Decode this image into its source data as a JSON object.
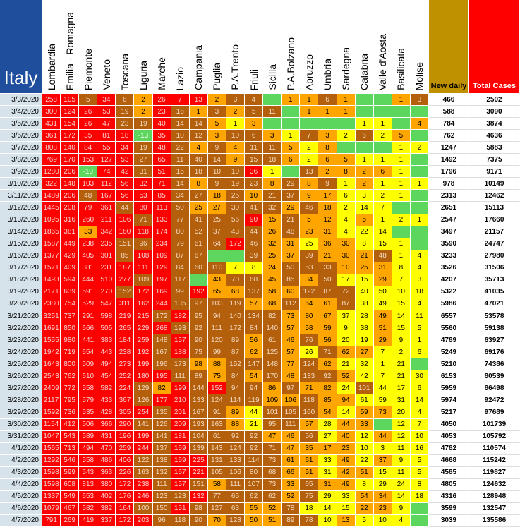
{
  "title": "Italy",
  "columns": [
    "Lombardia",
    "Emilia - Romagna",
    "Piemonte",
    "Veneto",
    "Toscana",
    "Liguria",
    "Marche",
    "Lazio",
    "Campania",
    "Puglia",
    "P.A.Trento",
    "Friuli",
    "Sicilia",
    "P.A.Bolzano",
    "Abruzzo",
    "Umbria",
    "Sardegna",
    "Calabria",
    "Valle d'Aosta",
    "Basilicata",
    "Molise"
  ],
  "new_daily_label": "New daily",
  "total_label": "Total Cases",
  "colors": [
    "#ff0000",
    "#b35f0c",
    "#ffa500",
    "#ffff00",
    "#5cd65c"
  ],
  "rows": [
    {
      "date": "3/3/2020",
      "values": [
        258,
        105,
        5,
        34,
        6,
        2,
        26,
        7,
        13,
        2,
        3,
        4,
        null,
        1,
        1,
        6,
        1,
        null,
        null,
        1,
        3
      ],
      "new_daily": 466,
      "total": 2502
    },
    {
      "date": "3/4/2020",
      "values": [
        300,
        124,
        26,
        53,
        19,
        2,
        23,
        16,
        1,
        3,
        2,
        5,
        11,
        null,
        1,
        1,
        1,
        null,
        null,
        null,
        null
      ],
      "new_daily": 588,
      "total": 3090
    },
    {
      "date": "3/5/2020",
      "values": [
        431,
        154,
        26,
        47,
        23,
        19,
        40,
        14,
        14,
        5,
        1,
        3,
        null,
        null,
        null,
        null,
        null,
        1,
        1,
        null,
        4
      ],
      "new_daily": 784,
      "total": 3874
    },
    {
      "date": "3/6/2020",
      "values": [
        361,
        172,
        35,
        81,
        18,
        -13,
        35,
        10,
        12,
        3,
        10,
        6,
        3,
        1,
        7,
        3,
        2,
        6,
        2,
        5,
        null
      ],
      "new_daily": 762,
      "total": 4636
    },
    {
      "date": "3/7/2020",
      "values": [
        808,
        140,
        84,
        55,
        34,
        19,
        48,
        22,
        4,
        9,
        4,
        11,
        11,
        5,
        2,
        8,
        null,
        null,
        null,
        1,
        2
      ],
      "new_daily": 1247,
      "total": 5883
    },
    {
      "date": "3/8/2020",
      "values": [
        769,
        170,
        153,
        127,
        53,
        27,
        65,
        11,
        40,
        14,
        9,
        15,
        18,
        6,
        2,
        6,
        5,
        1,
        1,
        1,
        null
      ],
      "new_daily": 1492,
      "total": 7375
    },
    {
      "date": "3/9/2020",
      "values": [
        1280,
        206,
        -10,
        74,
        42,
        31,
        51,
        15,
        18,
        10,
        10,
        36,
        1,
        null,
        13,
        2,
        8,
        2,
        6,
        1,
        null
      ],
      "new_daily": 1796,
      "total": 9171
    },
    {
      "date": "3/10/2020",
      "values": [
        322,
        148,
        103,
        112,
        56,
        32,
        71,
        14,
        8,
        9,
        19,
        23,
        8,
        29,
        8,
        9,
        1,
        2,
        1,
        1,
        1
      ],
      "new_daily": 978,
      "total": 10149
    },
    {
      "date": "3/11/2020",
      "values": [
        1489,
        206,
        48,
        167,
        56,
        53,
        85,
        34,
        27,
        18,
        25,
        10,
        21,
        37,
        9,
        17,
        6,
        3,
        2,
        1,
        null
      ],
      "new_daily": 2313,
      "total": 12462
    },
    {
      "date": "3/12/2020",
      "values": [
        1445,
        208,
        79,
        361,
        44,
        80,
        113,
        50,
        25,
        27,
        30,
        41,
        32,
        29,
        46,
        18,
        2,
        14,
        7,
        null,
        null
      ],
      "new_daily": 2651,
      "total": 15113
    },
    {
      "date": "3/13/2020",
      "values": [
        1095,
        316,
        260,
        211,
        106,
        71,
        133,
        77,
        41,
        25,
        56,
        90,
        15,
        21,
        5,
        12,
        4,
        5,
        1,
        2,
        1
      ],
      "new_daily": 2547,
      "total": 17660
    },
    {
      "date": "3/14/2020",
      "values": [
        1865,
        381,
        33,
        342,
        160,
        118,
        174,
        80,
        52,
        37,
        43,
        44,
        26,
        48,
        23,
        31,
        4,
        22,
        14,
        null,
        null
      ],
      "new_daily": 3497,
      "total": 21157
    },
    {
      "date": "3/15/2020",
      "values": [
        1587,
        449,
        238,
        235,
        151,
        96,
        234,
        79,
        61,
        64,
        172,
        46,
        32,
        31,
        25,
        36,
        30,
        8,
        15,
        1,
        null
      ],
      "new_daily": 3590,
      "total": 24747
    },
    {
      "date": "3/16/2020",
      "values": [
        1377,
        429,
        405,
        301,
        85,
        108,
        109,
        87,
        67,
        null,
        null,
        39,
        25,
        37,
        39,
        21,
        30,
        21,
        48,
        1,
        4
      ],
      "new_daily": 3233,
      "total": 27980
    },
    {
      "date": "3/17/2020",
      "values": [
        1571,
        409,
        381,
        231,
        187,
        111,
        129,
        84,
        60,
        110,
        7,
        8,
        24,
        50,
        53,
        33,
        10,
        25,
        31,
        8,
        4
      ],
      "new_daily": 3526,
      "total": 31506
    },
    {
      "date": "3/18/2020",
      "values": [
        1493,
        594,
        444,
        510,
        277,
        109,
        197,
        117,
        null,
        43,
        70,
        68,
        45,
        85,
        34,
        50,
        17,
        15,
        29,
        7,
        3
      ],
      "new_daily": 4207,
      "total": 35713
    },
    {
      "date": "3/19/2020",
      "values": [
        2171,
        639,
        591,
        270,
        152,
        172,
        169,
        99,
        192,
        65,
        68,
        137,
        58,
        60,
        122,
        87,
        72,
        40,
        50,
        10,
        18
      ],
      "new_daily": 5322,
      "total": 41035
    },
    {
      "date": "3/20/2020",
      "values": [
        2380,
        754,
        529,
        547,
        311,
        162,
        244,
        135,
        97,
        103,
        119,
        57,
        68,
        112,
        64,
        61,
        87,
        38,
        49,
        15,
        4
      ],
      "new_daily": 5986,
      "total": 47021
    },
    {
      "date": "3/21/2020",
      "values": [
        3251,
        737,
        291,
        598,
        219,
        215,
        172,
        182,
        95,
        94,
        140,
        134,
        82,
        73,
        80,
        67,
        37,
        28,
        49,
        14,
        11
      ],
      "new_daily": 6557,
      "total": 53578
    },
    {
      "date": "3/22/2020",
      "values": [
        1691,
        850,
        666,
        505,
        265,
        229,
        268,
        193,
        92,
        111,
        172,
        84,
        140,
        57,
        58,
        59,
        9,
        38,
        51,
        15,
        5
      ],
      "new_daily": 5560,
      "total": 59138
    },
    {
      "date": "3/23/2020",
      "values": [
        1555,
        980,
        441,
        383,
        184,
        259,
        148,
        157,
        90,
        120,
        89,
        56,
        61,
        46,
        76,
        56,
        20,
        19,
        29,
        9,
        1
      ],
      "new_daily": 4789,
      "total": 63927
    },
    {
      "date": "3/24/2020",
      "values": [
        1942,
        719,
        654,
        443,
        238,
        192,
        167,
        188,
        75,
        99,
        87,
        62,
        125,
        57,
        26,
        71,
        62,
        27,
        7,
        2,
        6
      ],
      "new_daily": 5249,
      "total": 69176
    },
    {
      "date": "3/25/2020",
      "values": [
        1643,
        800,
        509,
        494,
        273,
        199,
        196,
        173,
        98,
        88,
        152,
        147,
        148,
        77,
        124,
        62,
        21,
        32,
        1,
        21,
        null
      ],
      "new_daily": 5210,
      "total": 74386
    },
    {
      "date": "3/26/2020",
      "values": [
        2543,
        762,
        610,
        454,
        252,
        180,
        195,
        111,
        89,
        75,
        84,
        54,
        170,
        48,
        133,
        92,
        52,
        42,
        7,
        21,
        30
      ],
      "new_daily": 6153,
      "total": 80539
    },
    {
      "date": "3/27/2020",
      "values": [
        2409,
        772,
        558,
        582,
        224,
        129,
        82,
        199,
        144,
        152,
        94,
        94,
        86,
        97,
        71,
        82,
        24,
        101,
        44,
        17,
        6
      ],
      "new_daily": 5959,
      "total": 86498
    },
    {
      "date": "3/28/2020",
      "values": [
        2117,
        795,
        579,
        433,
        367,
        126,
        177,
        210,
        133,
        124,
        114,
        119,
        109,
        106,
        118,
        85,
        94,
        61,
        59,
        31,
        14
      ],
      "new_daily": 5974,
      "total": 92472
    },
    {
      "date": "3/29/2020",
      "values": [
        1592,
        736,
        535,
        428,
        305,
        254,
        135,
        201,
        167,
        91,
        89,
        44,
        101,
        105,
        160,
        54,
        14,
        59,
        73,
        20,
        4
      ],
      "new_daily": 5217,
      "total": 97689
    },
    {
      "date": "3/30/2020",
      "values": [
        1154,
        412,
        506,
        366,
        290,
        141,
        126,
        209,
        193,
        163,
        88,
        21,
        95,
        111,
        57,
        28,
        44,
        33,
        null,
        12,
        7
      ],
      "new_daily": 4050,
      "total": 101739
    },
    {
      "date": "3/31/2020",
      "values": [
        1047,
        543,
        589,
        431,
        196,
        199,
        141,
        181,
        104,
        61,
        92,
        92,
        47,
        46,
        56,
        27,
        40,
        12,
        44,
        12,
        10
      ],
      "new_daily": 4053,
      "total": 105792
    },
    {
      "date": "4/1/2020",
      "values": [
        1565,
        713,
        494,
        470,
        259,
        244,
        137,
        169,
        139,
        143,
        124,
        92,
        71,
        47,
        35,
        17,
        23,
        10,
        3,
        11,
        16
      ],
      "new_daily": 4782,
      "total": 110574
    },
    {
      "date": "4/2/2020",
      "values": [
        1292,
        546,
        558,
        486,
        406,
        122,
        138,
        169,
        225,
        131,
        133,
        114,
        73,
        61,
        61,
        33,
        49,
        22,
        37,
        9,
        5
      ],
      "new_daily": 4668,
      "total": 115242
    },
    {
      "date": "4/3/2020",
      "values": [
        1598,
        599,
        543,
        363,
        226,
        163,
        132,
        167,
        221,
        105,
        106,
        80,
        68,
        66,
        51,
        31,
        42,
        51,
        15,
        11,
        5
      ],
      "new_daily": 4585,
      "total": 119827
    },
    {
      "date": "4/4/2020",
      "values": [
        1598,
        608,
        813,
        380,
        172,
        238,
        111,
        157,
        151,
        58,
        111,
        107,
        73,
        33,
        65,
        31,
        49,
        8,
        29,
        24,
        8
      ],
      "new_daily": 4805,
      "total": 124632
    },
    {
      "date": "4/5/2020",
      "values": [
        1337,
        549,
        653,
        402,
        176,
        246,
        123,
        123,
        132,
        77,
        65,
        62,
        62,
        52,
        75,
        29,
        33,
        54,
        34,
        14,
        18
      ],
      "new_daily": 4316,
      "total": 128948
    },
    {
      "date": "4/6/2020",
      "values": [
        1079,
        467,
        582,
        382,
        164,
        100,
        150,
        151,
        98,
        127,
        63,
        55,
        52,
        78,
        18,
        14,
        15,
        22,
        23,
        9,
        null
      ],
      "new_daily": 3599,
      "total": 132547
    },
    {
      "date": "4/7/2020",
      "values": [
        791,
        269,
        419,
        337,
        172,
        203,
        96,
        118,
        90,
        70,
        128,
        50,
        51,
        89,
        78,
        10,
        13,
        5,
        10,
        4,
        null
      ],
      "new_daily": 3039,
      "total": 135586
    }
  ]
}
